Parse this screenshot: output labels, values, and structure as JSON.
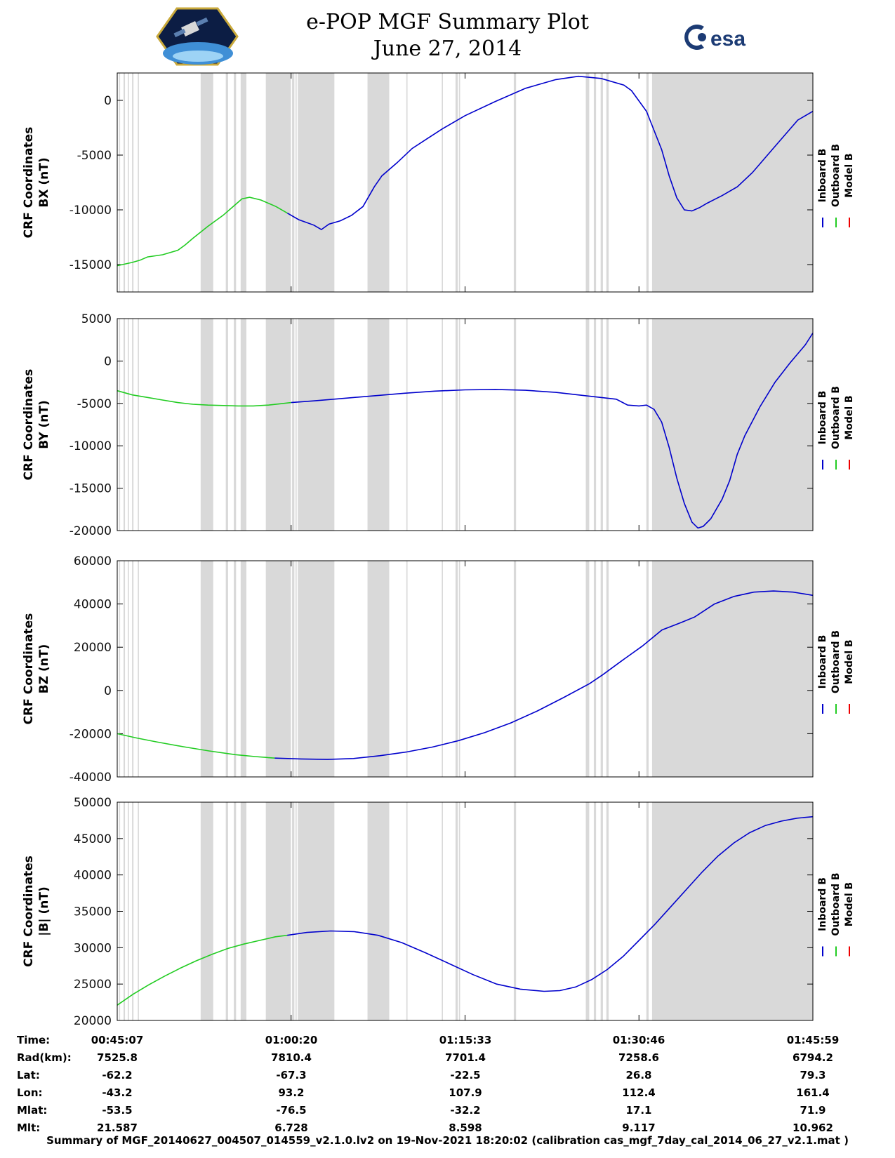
{
  "header": {
    "title": "e-POP MGF Summary Plot",
    "date": "June 27, 2014",
    "left_logo": "e-POP satellite mission patch",
    "right_logo_text": "esa"
  },
  "footer": {
    "text": "Summary of MGF_20140627_004507_014559_v2.1.0.lv2 on 19-Nov-2021 18:20:02 (calibration cas_mgf_7day_cal_2014_06_27_v2.1.mat )"
  },
  "legend": {
    "entries": [
      {
        "label": "Inboard B",
        "color": "#0000cc"
      },
      {
        "label": "Outboard B",
        "color": "#22cc22"
      },
      {
        "label": "Model B",
        "color": "#ee0000"
      }
    ]
  },
  "shading": {
    "color": "#d9d9d9",
    "intervals_min": [
      [
        0.15,
        0.25
      ],
      [
        0.55,
        0.68
      ],
      [
        0.92,
        1.02
      ],
      [
        1.3,
        1.42
      ],
      [
        1.8,
        1.9
      ],
      [
        7.3,
        8.4
      ],
      [
        9.5,
        9.7
      ],
      [
        10.2,
        10.4
      ],
      [
        10.8,
        11.3
      ],
      [
        13.0,
        15.2
      ],
      [
        15.3,
        15.5
      ],
      [
        15.6,
        15.7
      ],
      [
        15.8,
        19.0
      ],
      [
        21.9,
        23.8
      ],
      [
        25.3,
        25.4
      ],
      [
        28.4,
        28.5
      ],
      [
        29.6,
        29.8
      ],
      [
        29.9,
        30.0
      ],
      [
        34.7,
        34.9
      ],
      [
        41.0,
        41.3
      ],
      [
        41.7,
        41.9
      ],
      [
        42.3,
        42.5
      ],
      [
        42.8,
        43.0
      ],
      [
        46.3,
        46.5
      ],
      [
        46.8,
        60.87
      ]
    ]
  },
  "chart_data": [
    {
      "type": "line",
      "ylabel": "CRF Coordinates\nBX (nT)",
      "ylim": [
        -17500,
        2500
      ],
      "yticks": [
        0,
        -5000,
        -10000,
        -15000
      ],
      "series": [
        {
          "name": "Outboard B",
          "color": "#22cc22",
          "points": [
            [
              0,
              -15100
            ],
            [
              2,
              -14800
            ],
            [
              3,
              -14600
            ],
            [
              4,
              -14300
            ],
            [
              6,
              -14100
            ],
            [
              8,
              -13700
            ],
            [
              9,
              -13200
            ],
            [
              10,
              -12600
            ],
            [
              12,
              -11500
            ],
            [
              14,
              -10500
            ],
            [
              15,
              -9900
            ],
            [
              16.5,
              -9000
            ],
            [
              17.5,
              -8850
            ],
            [
              19,
              -9100
            ],
            [
              21,
              -9700
            ],
            [
              22.5,
              -10300
            ]
          ]
        },
        {
          "name": "Inboard B",
          "color": "#0000cc",
          "points": [
            [
              22.5,
              -10300
            ],
            [
              24,
              -10900
            ],
            [
              26,
              -11400
            ],
            [
              27,
              -11800
            ],
            [
              28,
              -11300
            ],
            [
              29.5,
              -11000
            ],
            [
              31,
              -10500
            ],
            [
              32.5,
              -9700
            ],
            [
              34,
              -7900
            ],
            [
              35,
              -6900
            ],
            [
              37,
              -5700
            ],
            [
              39,
              -4400
            ],
            [
              41,
              -3500
            ],
            [
              43,
              -2600
            ],
            [
              46,
              -1400
            ],
            [
              50,
              -100
            ],
            [
              54,
              1100
            ],
            [
              58,
              1900
            ],
            [
              61,
              2200
            ],
            [
              64,
              2000
            ],
            [
              67,
              1400
            ],
            [
              68,
              900
            ],
            [
              70,
              -1000
            ],
            [
              72,
              -4500
            ],
            [
              73,
              -6900
            ],
            [
              74,
              -8900
            ],
            [
              75,
              -10000
            ],
            [
              76,
              -10100
            ],
            [
              77,
              -9800
            ],
            [
              78,
              -9400
            ],
            [
              80,
              -8700
            ],
            [
              82,
              -7900
            ],
            [
              84,
              -6600
            ],
            [
              87,
              -4200
            ],
            [
              90,
              -1800
            ],
            [
              92,
              -1000
            ]
          ]
        }
      ]
    },
    {
      "type": "line",
      "ylabel": "CRF Coordinates\nBY (nT)",
      "ylim": [
        -20000,
        5000
      ],
      "yticks": [
        5000,
        0,
        -5000,
        -10000,
        -15000,
        -20000
      ],
      "series": [
        {
          "name": "Outboard B",
          "color": "#22cc22",
          "points": [
            [
              0,
              -3500
            ],
            [
              2,
              -4000
            ],
            [
              4,
              -4300
            ],
            [
              6,
              -4600
            ],
            [
              8,
              -4900
            ],
            [
              10,
              -5100
            ],
            [
              12,
              -5200
            ],
            [
              14,
              -5250
            ],
            [
              16,
              -5300
            ],
            [
              18,
              -5300
            ],
            [
              20,
              -5200
            ],
            [
              22,
              -5000
            ],
            [
              23,
              -4900
            ]
          ]
        },
        {
          "name": "Inboard B",
          "color": "#0000cc",
          "points": [
            [
              23,
              -4900
            ],
            [
              26,
              -4700
            ],
            [
              30,
              -4400
            ],
            [
              34,
              -4100
            ],
            [
              38,
              -3800
            ],
            [
              42,
              -3550
            ],
            [
              46,
              -3400
            ],
            [
              50,
              -3350
            ],
            [
              54,
              -3450
            ],
            [
              58,
              -3700
            ],
            [
              62,
              -4100
            ],
            [
              66,
              -4500
            ],
            [
              67.5,
              -5200
            ],
            [
              69,
              -5300
            ],
            [
              70,
              -5200
            ],
            [
              71,
              -5700
            ],
            [
              72,
              -7200
            ],
            [
              73,
              -10200
            ],
            [
              74,
              -13800
            ],
            [
              75,
              -16800
            ],
            [
              76,
              -19000
            ],
            [
              76.8,
              -19700
            ],
            [
              77.5,
              -19500
            ],
            [
              78.5,
              -18600
            ],
            [
              80,
              -16300
            ],
            [
              81,
              -14100
            ],
            [
              82,
              -11000
            ],
            [
              83,
              -8800
            ],
            [
              85,
              -5400
            ],
            [
              87,
              -2500
            ],
            [
              89,
              -200
            ],
            [
              91,
              1900
            ],
            [
              92,
              3300
            ]
          ]
        }
      ]
    },
    {
      "type": "line",
      "ylabel": "CRF Coordinates\nBZ (nT)",
      "ylim": [
        -40000,
        60000
      ],
      "yticks": [
        60000,
        40000,
        20000,
        0,
        -20000,
        -40000
      ],
      "series": [
        {
          "name": "Outboard B",
          "color": "#22cc22",
          "points": [
            [
              0,
              -20000
            ],
            [
              3,
              -22000
            ],
            [
              6,
              -23800
            ],
            [
              10,
              -26000
            ],
            [
              14,
              -28000
            ],
            [
              18,
              -29700
            ],
            [
              21,
              -30600
            ],
            [
              24,
              -31300
            ]
          ]
        },
        {
          "name": "Inboard B",
          "color": "#0000cc",
          "points": [
            [
              24,
              -31300
            ],
            [
              28,
              -31700
            ],
            [
              32,
              -31900
            ],
            [
              36,
              -31500
            ],
            [
              40,
              -30200
            ],
            [
              44,
              -28500
            ],
            [
              48,
              -26200
            ],
            [
              52,
              -23200
            ],
            [
              56,
              -19500
            ],
            [
              60,
              -15000
            ],
            [
              64,
              -9500
            ],
            [
              68,
              -3300
            ],
            [
              72,
              3200
            ],
            [
              74,
              7300
            ],
            [
              77,
              14000
            ],
            [
              80,
              20500
            ],
            [
              83,
              28000
            ],
            [
              86,
              31500
            ],
            [
              88,
              34000
            ],
            [
              91,
              40000
            ],
            [
              94,
              43500
            ],
            [
              97,
              45500
            ],
            [
              100,
              46000
            ],
            [
              103,
              45500
            ],
            [
              106,
              44000
            ]
          ]
        }
      ]
    },
    {
      "type": "line",
      "ylabel": "CRF Coordinates\n|B| (nT)",
      "ylim": [
        20000,
        50000
      ],
      "yticks": [
        50000,
        45000,
        40000,
        35000,
        30000,
        25000,
        20000
      ],
      "series": [
        {
          "name": "Outboard B",
          "color": "#22cc22",
          "points": [
            [
              0,
              22100
            ],
            [
              2,
              23600
            ],
            [
              4,
              24900
            ],
            [
              6,
              26100
            ],
            [
              8,
              27200
            ],
            [
              10,
              28200
            ],
            [
              12,
              29100
            ],
            [
              14,
              29900
            ],
            [
              16,
              30500
            ],
            [
              18,
              31000
            ],
            [
              20,
              31500
            ],
            [
              21.5,
              31700
            ]
          ]
        },
        {
          "name": "Inboard B",
          "color": "#0000cc",
          "points": [
            [
              21.5,
              31700
            ],
            [
              24,
              32100
            ],
            [
              27,
              32300
            ],
            [
              30,
              32200
            ],
            [
              33,
              31700
            ],
            [
              36,
              30700
            ],
            [
              39,
              29300
            ],
            [
              42,
              27800
            ],
            [
              45,
              26300
            ],
            [
              48,
              25000
            ],
            [
              51,
              24300
            ],
            [
              54,
              24000
            ],
            [
              56,
              24100
            ],
            [
              58,
              24600
            ],
            [
              60,
              25600
            ],
            [
              62,
              27000
            ],
            [
              64,
              28800
            ],
            [
              66,
              31000
            ],
            [
              68,
              33200
            ],
            [
              70,
              35600
            ],
            [
              72,
              38000
            ],
            [
              74,
              40400
            ],
            [
              76,
              42600
            ],
            [
              78,
              44400
            ],
            [
              80,
              45800
            ],
            [
              82,
              46800
            ],
            [
              84,
              47400
            ],
            [
              86,
              47800
            ],
            [
              88,
              48000
            ]
          ]
        }
      ]
    }
  ],
  "xaxis": {
    "tick_labels": [
      "00:45:07",
      "01:00:20",
      "01:15:33",
      "01:30:46",
      "01:45:59"
    ]
  },
  "ephemeris": {
    "rows": [
      {
        "label": "Time:",
        "values": [
          "00:45:07",
          "01:00:20",
          "01:15:33",
          "01:30:46",
          "01:45:59"
        ]
      },
      {
        "label": "Rad(km):",
        "values": [
          "7525.8",
          "7810.4",
          "7701.4",
          "7258.6",
          "6794.2"
        ]
      },
      {
        "label": "Lat:",
        "values": [
          "-62.2",
          "-67.3",
          "-22.5",
          "26.8",
          "79.3"
        ]
      },
      {
        "label": "Lon:",
        "values": [
          "-43.2",
          "93.2",
          "107.9",
          "112.4",
          "161.4"
        ]
      },
      {
        "label": "Mlat:",
        "values": [
          "-53.5",
          "-76.5",
          "-32.2",
          "17.1",
          "71.9"
        ]
      },
      {
        "label": "Mlt:",
        "values": [
          "21.587",
          "6.728",
          "8.598",
          "9.117",
          "10.962"
        ]
      }
    ]
  }
}
